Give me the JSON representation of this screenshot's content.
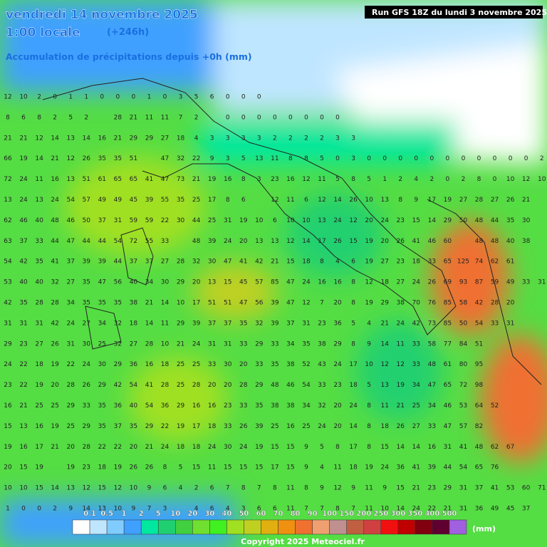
{
  "header": {
    "date": "vendredi 14 novembre 2025",
    "time": "1:00 locale",
    "offset": "(+246h)",
    "product": "Accumulation de précipitations depuis +0h (mm)",
    "run": "Run GFS 18Z du lundi 3 novembre 2025"
  },
  "legend": {
    "labels": [
      "0.1",
      "0.5",
      "1",
      "2",
      "5",
      "10",
      "20",
      "30",
      "40",
      "50",
      "60",
      "70",
      "80",
      "90",
      "100",
      "150",
      "200",
      "250",
      "300",
      "350",
      "400",
      "500"
    ],
    "colors": [
      "#ffffff",
      "#bfe6ff",
      "#80ccff",
      "#40a0ff",
      "#00e8a0",
      "#20d070",
      "#40d040",
      "#70e030",
      "#40f020",
      "#a0e020",
      "#c0d020",
      "#e0b010",
      "#f09010",
      "#f07030",
      "#f0a070",
      "#c09090",
      "#c06040",
      "#d04040",
      "#f01010",
      "#c00000",
      "#800010",
      "#600030",
      "#a060e0"
    ],
    "unit": "(mm)"
  },
  "copyright": "Copyright 2025 Meteociel.fr",
  "grid": {
    "rows": [
      [
        12,
        10,
        2,
        0,
        1,
        1,
        0,
        0,
        0,
        1,
        0,
        3,
        5,
        6,
        0,
        0,
        0
      ],
      [
        8,
        6,
        8,
        2,
        5,
        2,
        null,
        28,
        21,
        11,
        11,
        7,
        2,
        null,
        0,
        0,
        0,
        0,
        0,
        0,
        0,
        0
      ],
      [
        21,
        21,
        12,
        14,
        13,
        14,
        16,
        21,
        29,
        29,
        27,
        18,
        4,
        3,
        3,
        3,
        3,
        2,
        2,
        2,
        2,
        3,
        3
      ],
      [
        66,
        19,
        14,
        21,
        12,
        26,
        35,
        35,
        51,
        null,
        47,
        32,
        22,
        9,
        3,
        5,
        13,
        11,
        8,
        8,
        5,
        0,
        3,
        0,
        0,
        0,
        0,
        0,
        0,
        0,
        0,
        0,
        0,
        0,
        2
      ],
      [
        72,
        24,
        11,
        16,
        13,
        51,
        61,
        65,
        65,
        41,
        47,
        73,
        21,
        19,
        16,
        8,
        3,
        23,
        16,
        12,
        11,
        5,
        8,
        5,
        1,
        2,
        4,
        2,
        0,
        2,
        8,
        0,
        10,
        12,
        10
      ],
      [
        13,
        24,
        13,
        24,
        54,
        57,
        49,
        49,
        45,
        39,
        55,
        35,
        25,
        17,
        8,
        6,
        null,
        12,
        11,
        6,
        12,
        14,
        26,
        10,
        13,
        8,
        9,
        17,
        19,
        27,
        28,
        27,
        26,
        21
      ],
      [
        62,
        46,
        40,
        48,
        46,
        50,
        37,
        31,
        59,
        59,
        22,
        30,
        44,
        25,
        31,
        19,
        10,
        6,
        10,
        10,
        13,
        24,
        12,
        20,
        24,
        23,
        15,
        14,
        29,
        50,
        48,
        44,
        35,
        30
      ],
      [
        63,
        37,
        33,
        44,
        47,
        44,
        44,
        54,
        72,
        55,
        33,
        null,
        48,
        39,
        24,
        20,
        13,
        13,
        12,
        14,
        17,
        26,
        15,
        19,
        20,
        26,
        41,
        46,
        60,
        null,
        48,
        48,
        40,
        38
      ],
      [
        54,
        42,
        35,
        41,
        37,
        39,
        39,
        44,
        37,
        37,
        27,
        28,
        32,
        30,
        47,
        41,
        42,
        21,
        15,
        18,
        8,
        4,
        6,
        19,
        27,
        23,
        18,
        33,
        65,
        125,
        74,
        62,
        61
      ],
      [
        53,
        40,
        40,
        32,
        27,
        35,
        47,
        56,
        40,
        34,
        30,
        29,
        20,
        13,
        15,
        45,
        57,
        85,
        47,
        24,
        16,
        16,
        8,
        12,
        18,
        27,
        24,
        26,
        69,
        93,
        87,
        59,
        49,
        33,
        31
      ],
      [
        42,
        35,
        28,
        28,
        34,
        35,
        35,
        35,
        38,
        21,
        14,
        10,
        17,
        51,
        51,
        47,
        56,
        39,
        47,
        12,
        7,
        20,
        8,
        19,
        29,
        38,
        70,
        76,
        85,
        58,
        42,
        28,
        20
      ],
      [
        31,
        31,
        31,
        42,
        24,
        27,
        34,
        32,
        18,
        14,
        11,
        29,
        39,
        37,
        37,
        35,
        32,
        39,
        37,
        31,
        23,
        36,
        5,
        4,
        21,
        24,
        42,
        73,
        85,
        50,
        54,
        33,
        31
      ],
      [
        29,
        23,
        27,
        26,
        31,
        30,
        25,
        32,
        27,
        28,
        10,
        21,
        24,
        31,
        31,
        33,
        29,
        33,
        34,
        35,
        38,
        29,
        8,
        9,
        14,
        11,
        33,
        58,
        77,
        84,
        51
      ],
      [
        24,
        22,
        18,
        19,
        22,
        24,
        30,
        29,
        36,
        16,
        18,
        25,
        25,
        33,
        30,
        20,
        33,
        35,
        38,
        52,
        43,
        24,
        17,
        10,
        12,
        12,
        33,
        48,
        61,
        80,
        95
      ],
      [
        23,
        22,
        19,
        20,
        28,
        26,
        29,
        42,
        54,
        41,
        28,
        25,
        28,
        20,
        20,
        28,
        29,
        48,
        46,
        54,
        33,
        23,
        18,
        5,
        13,
        19,
        34,
        47,
        65,
        72,
        98
      ],
      [
        16,
        21,
        25,
        25,
        29,
        33,
        35,
        36,
        40,
        54,
        36,
        29,
        16,
        16,
        23,
        33,
        35,
        38,
        38,
        34,
        32,
        20,
        24,
        8,
        11,
        21,
        25,
        34,
        46,
        53,
        64,
        52
      ],
      [
        15,
        13,
        16,
        19,
        25,
        29,
        35,
        37,
        35,
        29,
        22,
        19,
        17,
        18,
        33,
        26,
        39,
        25,
        16,
        25,
        24,
        20,
        14,
        8,
        18,
        26,
        27,
        33,
        47,
        57,
        82
      ],
      [
        19,
        16,
        17,
        21,
        20,
        28,
        22,
        22,
        20,
        21,
        24,
        18,
        18,
        24,
        30,
        24,
        19,
        15,
        15,
        9,
        5,
        8,
        17,
        8,
        15,
        14,
        14,
        16,
        31,
        41,
        48,
        62,
        67
      ],
      [
        20,
        15,
        19,
        null,
        19,
        23,
        18,
        19,
        26,
        26,
        8,
        5,
        15,
        11,
        15,
        15,
        15,
        17,
        15,
        9,
        4,
        11,
        18,
        19,
        24,
        36,
        41,
        39,
        44,
        54,
        65,
        76
      ],
      [
        10,
        10,
        15,
        14,
        13,
        12,
        15,
        12,
        10,
        9,
        6,
        4,
        2,
        6,
        7,
        8,
        7,
        8,
        11,
        8,
        9,
        12,
        9,
        11,
        9,
        15,
        21,
        23,
        29,
        31,
        37,
        41,
        53,
        60,
        71
      ],
      [
        1,
        0,
        0,
        2,
        9,
        14,
        13,
        10,
        9,
        7,
        3,
        null,
        4,
        6,
        4,
        3,
        6,
        6,
        11,
        7,
        7,
        8,
        7,
        11,
        10,
        14,
        24,
        22,
        21,
        31,
        36,
        49,
        45,
        37
      ]
    ]
  }
}
